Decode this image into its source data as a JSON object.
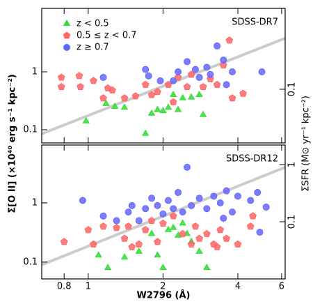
{
  "chart_data": [
    {
      "type": "scatter",
      "ylabel": "Σ[O II] (×10⁴⁰ erg s⁻¹ kpc⁻²)",
      "y2label": "ΣSFR (M⊙ yr⁻¹ kpc⁻²)",
      "annotation": "SDSS-DR7",
      "legend": "upper left",
      "log": true,
      "xlim": [
        0.65,
        6.2
      ],
      "xticks": [
        0.8,
        1,
        2,
        4,
        6
      ],
      "ylim": [
        0.059,
        12.5
      ],
      "yticks": [
        0.1,
        1
      ],
      "y2lim": [
        0.0115,
        2.6
      ],
      "y2ticks": [
        0.1
      ],
      "fit": {
        "color": "#cccccc",
        "x": [
          0.65,
          6.2
        ],
        "y": [
          0.085,
          3.8
        ]
      },
      "series": [
        {
          "name": "z < 0.5",
          "color": "#33dd33",
          "marker": "triangle",
          "x": [
            0.98,
            1.18,
            1.28,
            1.4,
            1.7,
            1.8,
            1.9,
            2.0,
            2.1,
            2.2,
            2.4,
            2.6,
            2.8,
            2.9,
            2.3
          ],
          "values": [
            0.14,
            0.28,
            0.25,
            0.24,
            0.085,
            0.19,
            0.22,
            0.21,
            0.24,
            0.4,
            0.35,
            0.36,
            0.4,
            0.18,
            0.22
          ]
        },
        {
          "name": "0.5 ≤ z < 0.7",
          "color": "#ff6666",
          "marker": "pentagon",
          "x": [
            0.78,
            0.78,
            0.92,
            0.93,
            1.05,
            1.15,
            1.2,
            1.25,
            1.4,
            1.55,
            1.7,
            1.8,
            1.9,
            2.1,
            2.2,
            2.3,
            2.5,
            2.9,
            3.1,
            3.3,
            3.5,
            3.7,
            3.8,
            4.2,
            2.6
          ],
          "values": [
            0.8,
            0.55,
            0.85,
            0.55,
            0.7,
            0.35,
            0.52,
            0.48,
            0.35,
            0.38,
            0.6,
            0.4,
            0.45,
            0.6,
            0.3,
            0.8,
            0.55,
            0.55,
            0.75,
            0.6,
            1.3,
            3.5,
            0.35,
            0.42,
            0.9
          ]
        },
        {
          "name": "z ≥ 0.7",
          "color": "#6666ff",
          "marker": "circle",
          "x": [
            1.15,
            1.7,
            1.75,
            1.95,
            2.2,
            2.3,
            2.5,
            2.7,
            2.8,
            3.0,
            3.3,
            3.5,
            3.6,
            3.8,
            5.0,
            3.1
          ],
          "values": [
            0.8,
            1.1,
            0.85,
            0.7,
            0.7,
            1.0,
            1.5,
            1.1,
            0.8,
            1.2,
            2.8,
            1.6,
            0.6,
            1.0,
            1.0,
            0.9
          ]
        }
      ]
    },
    {
      "type": "scatter",
      "xlabel": "W2796 (Å)",
      "annotation": "SDSS-DR12",
      "log": true,
      "xlim": [
        0.65,
        6.2
      ],
      "xticks": [
        0.8,
        1,
        2,
        4,
        6
      ],
      "ylim": [
        0.052,
        9.5
      ],
      "yticks": [
        0.1,
        1
      ],
      "y2lim": [
        0.01,
        2.2
      ],
      "y2ticks": [
        0.1,
        1
      ],
      "fit": {
        "color": "#cccccc",
        "x": [
          0.65,
          6.2
        ],
        "y": [
          0.09,
          4.0
        ]
      },
      "series": [
        {
          "color": "#33dd33",
          "marker": "triangle",
          "x": [
            1.1,
            1.2,
            1.4,
            1.6,
            1.8,
            1.9,
            2.0,
            2.1,
            2.2,
            2.3,
            2.5,
            2.6,
            2.8,
            3.0,
            2.4
          ],
          "values": [
            0.13,
            0.08,
            0.12,
            0.15,
            0.3,
            0.13,
            0.08,
            0.35,
            0.38,
            0.28,
            0.3,
            0.22,
            0.15,
            0.08,
            0.45
          ]
        },
        {
          "color": "#ff6666",
          "marker": "pentagon",
          "x": [
            0.8,
            1.0,
            1.05,
            1.15,
            1.3,
            1.4,
            1.45,
            1.5,
            1.6,
            1.7,
            1.8,
            1.9,
            2.0,
            2.2,
            2.4,
            2.6,
            2.8,
            3.0,
            3.2,
            3.4,
            3.6,
            4.0,
            4.5,
            4.6,
            3.3,
            2.7
          ],
          "values": [
            0.22,
            0.35,
            0.2,
            0.4,
            0.38,
            0.25,
            0.4,
            0.18,
            0.2,
            0.35,
            0.5,
            0.22,
            0.45,
            0.6,
            0.3,
            0.2,
            0.25,
            0.3,
            0.2,
            0.35,
            0.25,
            0.2,
            0.4,
            0.6,
            0.18,
            0.4
          ]
        },
        {
          "color": "#6666ff",
          "marker": "circle",
          "x": [
            0.95,
            1.15,
            1.3,
            1.45,
            1.5,
            1.6,
            1.7,
            1.8,
            1.9,
            2.0,
            2.1,
            2.2,
            2.3,
            2.4,
            2.5,
            2.6,
            2.8,
            3.0,
            3.2,
            3.4,
            3.6,
            3.8,
            4.0,
            4.5,
            4.8,
            5.2,
            4.9,
            3.5
          ],
          "values": [
            1.1,
            0.6,
            0.5,
            0.7,
            0.9,
            0.5,
            0.8,
            1.2,
            0.9,
            0.65,
            1.1,
            0.8,
            1.5,
            0.7,
            4.0,
            0.9,
            1.2,
            0.8,
            1.3,
            1.0,
            1.6,
            0.7,
            1.3,
            1.1,
            1.5,
            0.85,
            0.32,
            0.55
          ]
        }
      ]
    }
  ]
}
